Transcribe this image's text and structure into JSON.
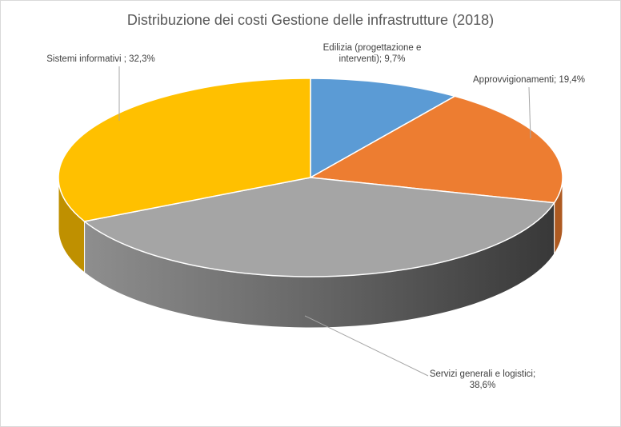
{
  "chart_data": {
    "type": "pie",
    "title": "Distribuzione dei costi Gestione delle infrastrutture (2018)",
    "slices": [
      {
        "name": "Edilizia (progettazione e interventi)",
        "value": 9.7,
        "label_lines": [
          "Edilizia (progettazione e",
          "interventi); 9,7%"
        ],
        "color": "#5b9bd5",
        "side_color": "#41719c"
      },
      {
        "name": "Approvvigionamenti",
        "value": 19.4,
        "label_lines": [
          "Approvvigionamenti; 19,4%"
        ],
        "color": "#ed7d31",
        "side_color": "#ae5a21"
      },
      {
        "name": "Servizi generali e logistici",
        "value": 38.6,
        "label_lines": [
          "Servizi generali e logistici;",
          "38,6%"
        ],
        "color": "#a5a5a5",
        "side_color": "#555555"
      },
      {
        "name": "Sistemi informativi",
        "value": 32.3,
        "label_lines": [
          "Sistemi informativi ; 32,3%"
        ],
        "color": "#ffc000",
        "side_color": "#bf9000"
      }
    ],
    "style": "3d-pie",
    "legend": "none"
  }
}
